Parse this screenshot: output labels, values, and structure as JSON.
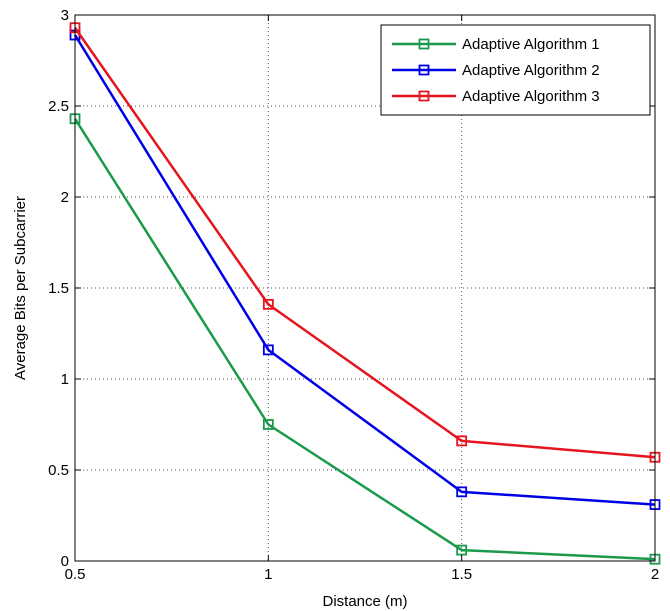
{
  "chart_data": {
    "type": "line",
    "xlabel": "Distance (m)",
    "ylabel": "Average Bits per Subcarrier",
    "xlim": [
      0.5,
      2
    ],
    "ylim": [
      0,
      3
    ],
    "xticks": [
      "0.5",
      "1",
      "1.5",
      "2"
    ],
    "yticks": [
      "0",
      "0.5",
      "1",
      "1.5",
      "2",
      "2.5",
      "3"
    ],
    "x": [
      0.5,
      1,
      1.5,
      2
    ],
    "grid": true,
    "legend_position": "top-right",
    "series": [
      {
        "name": "Adaptive Algorithm 1",
        "color": "#1a9a4a",
        "values": [
          2.43,
          0.75,
          0.06,
          0.01
        ]
      },
      {
        "name": "Adaptive Algorithm 2",
        "color": "#0000e6",
        "values": [
          2.89,
          1.16,
          0.38,
          0.31
        ]
      },
      {
        "name": "Adaptive Algorithm 3",
        "color": "#e6141e",
        "values": [
          2.93,
          1.41,
          0.66,
          0.57
        ]
      }
    ],
    "marker": "square"
  }
}
